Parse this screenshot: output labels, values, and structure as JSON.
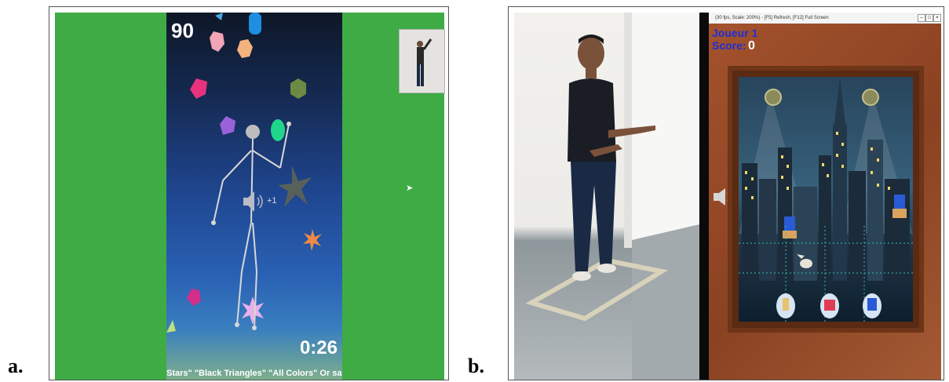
{
  "labels": {
    "a": "a.",
    "b": "b."
  },
  "panel_a": {
    "score": "90",
    "timer": "0:26",
    "ticker": "Stars\"  \"Black Triangles\"  \"All Colors\"   Or say comma",
    "points_popup": "+1",
    "colors": {
      "background": "#3fab45",
      "accent_text": "#ffffff"
    }
  },
  "panel_b": {
    "window_title": "(30 fps, Scale: 200%) - [F5] Refresh, [F12] Full Screen",
    "player_label": "Joueur 1",
    "score_label": "Score:",
    "score_value": "0",
    "colors": {
      "player_text": "#1e2fd6",
      "frame": "#6e3518"
    }
  }
}
